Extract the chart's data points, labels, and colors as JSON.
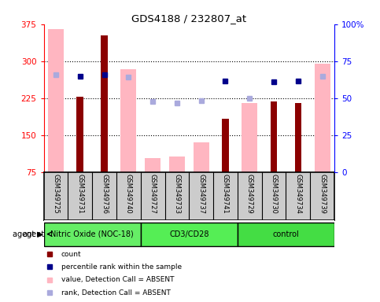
{
  "title": "GDS4188 / 232807_at",
  "samples": [
    "GSM349725",
    "GSM349731",
    "GSM349736",
    "GSM349740",
    "GSM349727",
    "GSM349733",
    "GSM349737",
    "GSM349741",
    "GSM349729",
    "GSM349730",
    "GSM349734",
    "GSM349739"
  ],
  "groups": [
    {
      "label": "Nitric Oxide (NOC-18)",
      "start": 0,
      "end": 3,
      "color": "#66EE66"
    },
    {
      "label": "CD3/CD28",
      "start": 4,
      "end": 7,
      "color": "#55EE55"
    },
    {
      "label": "control",
      "start": 8,
      "end": 11,
      "color": "#44DD44"
    }
  ],
  "count_present": [
    null,
    228,
    352,
    null,
    null,
    null,
    null,
    183,
    null,
    218,
    215,
    null
  ],
  "count_absent": [
    365,
    null,
    null,
    283,
    103,
    107,
    135,
    null,
    215,
    null,
    null,
    295
  ],
  "rank_present": [
    null,
    270,
    272,
    null,
    null,
    null,
    null,
    260,
    null,
    258,
    260,
    null
  ],
  "rank_absent": [
    272,
    null,
    null,
    268,
    218,
    215,
    220,
    null,
    225,
    null,
    null,
    270
  ],
  "ylim": [
    75,
    375
  ],
  "y2lim": [
    0,
    100
  ],
  "yticks": [
    75,
    150,
    225,
    300,
    375
  ],
  "y2ticks": [
    0,
    25,
    50,
    75,
    100
  ],
  "color_dark_red": "#8B0000",
  "color_pink": "#FFB6C1",
  "color_blue": "#00008B",
  "color_lavender": "#AAAADD",
  "bg_plot": "#FFFFFF",
  "bg_samples": "#CCCCCC",
  "grid_lines": [
    150,
    225,
    300
  ]
}
